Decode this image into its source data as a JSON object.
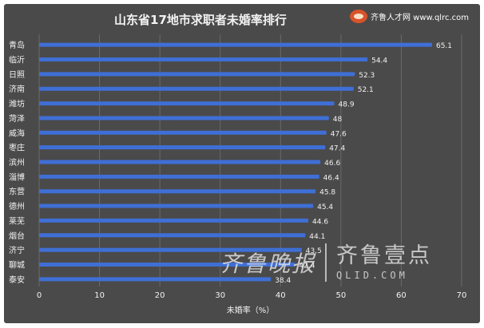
{
  "chart_data": {
    "type": "bar",
    "orientation": "horizontal",
    "title": "山东省17地市求职者未婚率排行",
    "xlabel": "未婚率（%）",
    "ylabel": "",
    "xlim": [
      0,
      70
    ],
    "xticks": [
      "0",
      "10",
      "20",
      "30",
      "40",
      "50",
      "60",
      "70"
    ],
    "grid": "vertical",
    "categories": [
      "青岛",
      "临沂",
      "日照",
      "济南",
      "潍坊",
      "菏泽",
      "威海",
      "枣庄",
      "滨州",
      "淄博",
      "东营",
      "德州",
      "莱芜",
      "烟台",
      "济宁",
      "聊城",
      "泰安"
    ],
    "values": [
      65.1,
      54.4,
      52.3,
      52.1,
      48.9,
      48,
      47.6,
      47.4,
      46.6,
      46.4,
      45.8,
      45.4,
      44.6,
      44.1,
      43.5,
      42.4,
      38.4
    ],
    "value_labels": [
      "65.1",
      "54.4",
      "52.3",
      "52.1",
      "48.9",
      "48",
      "47.6",
      "47.4",
      "46.6",
      "46.4",
      "45.8",
      "45.4",
      "44.6",
      "44.1",
      "43.5",
      "42.4",
      "38.4"
    ],
    "bar_color": "#3f6fd6",
    "background_color": "#4a4a4a",
    "text_color": "#f2f2f2"
  },
  "brand": {
    "name": "齐鲁人才网",
    "url": "www.qlrc.com",
    "logo_icon": "frog-logo-icon"
  },
  "watermark": {
    "left": "齐鲁晚报",
    "right": "齐鲁壹点",
    "url": "QLID.COM"
  }
}
